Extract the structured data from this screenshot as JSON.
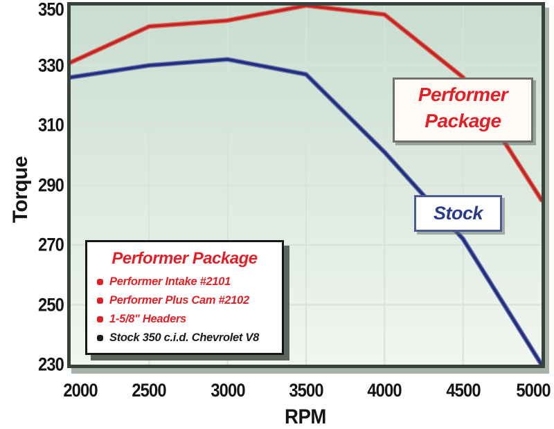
{
  "chart_data": {
    "type": "line",
    "xlabel": "RPM",
    "ylabel": "Torque",
    "x": [
      2000,
      2500,
      3000,
      3500,
      4000,
      4500,
      5000
    ],
    "xticks": [
      2000,
      2500,
      3000,
      3500,
      4000,
      4500,
      5000
    ],
    "yticks": [
      230,
      250,
      270,
      290,
      310,
      330,
      350
    ],
    "xlim": [
      2000,
      5000
    ],
    "ylim": [
      230,
      350
    ],
    "grid": true,
    "legend_position": "in-plot callout boxes",
    "series": [
      {
        "name": "Performer Package",
        "color": "#c22523",
        "halo_color": "#dd7468",
        "values": [
          331,
          343,
          345,
          350,
          347,
          326,
          285
        ]
      },
      {
        "name": "Stock",
        "color": "#232f7e",
        "halo_color": "#7381b0",
        "values": [
          326,
          330,
          332,
          327,
          301,
          272,
          230
        ]
      }
    ],
    "plot_bg_top": "#c9ddd0",
    "plot_bg_bottom": "#f1f6f0",
    "grid_color": "#d7e2d8",
    "frame_color": "#37423c"
  },
  "annotations": {
    "performer_label": {
      "line1": "Performer",
      "line2": "Package",
      "color": "#e11f26"
    },
    "stock_label": {
      "text": "Stock",
      "color": "#2c3a8c"
    }
  },
  "legend": {
    "title": "Performer Package",
    "title_color": "#e11f26",
    "items": [
      {
        "text": "Performer Intake #2101",
        "color": "#e11f26"
      },
      {
        "text": "Performer Plus Cam #2102",
        "color": "#e11f26"
      },
      {
        "text": "1-5/8\" Headers",
        "color": "#e11f26"
      },
      {
        "text": "Stock 350 c.i.d. Chevrolet V8",
        "color": "#1a1a1a"
      }
    ]
  }
}
